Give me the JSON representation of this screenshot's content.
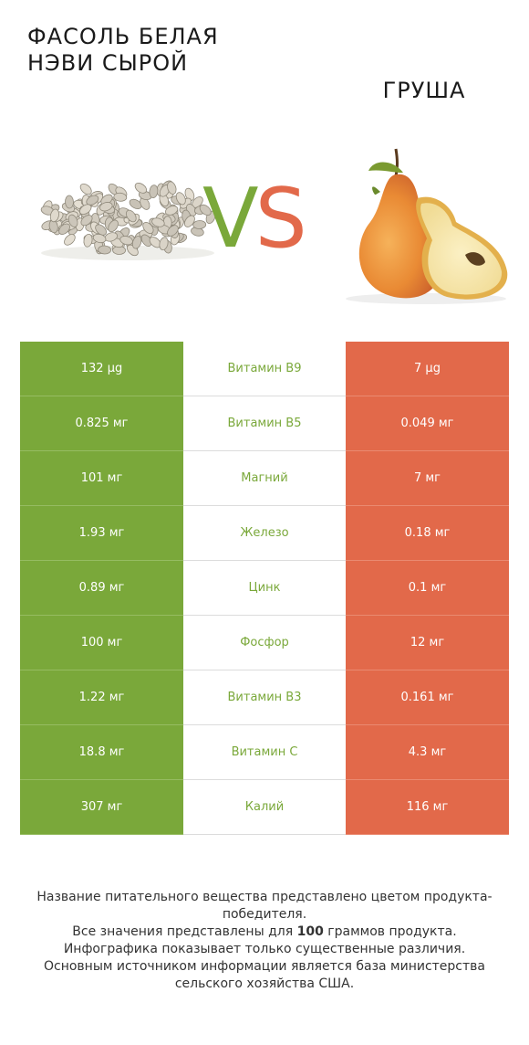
{
  "header": {
    "left_title": "ФАСОЛЬ БЕЛАЯ НЭВИ СЫРОЙ",
    "right_title": "ГРУША",
    "vs_v": "V",
    "vs_s": "S"
  },
  "colors": {
    "left_winner": "#7aa83a",
    "right_winner": "#e2694a"
  },
  "rows": [
    {
      "left": "132 µg",
      "nutrient": "Витамин B9",
      "right": "7 µg"
    },
    {
      "left": "0.825 мг",
      "nutrient": "Витамин B5",
      "right": "0.049 мг"
    },
    {
      "left": "101 мг",
      "nutrient": "Магний",
      "right": "7 мг"
    },
    {
      "left": "1.93 мг",
      "nutrient": "Железо",
      "right": "0.18 мг"
    },
    {
      "left": "0.89 мг",
      "nutrient": "Цинк",
      "right": "0.1 мг"
    },
    {
      "left": "100 мг",
      "nutrient": "Фосфор",
      "right": "12 мг"
    },
    {
      "left": "1.22 мг",
      "nutrient": "Витамин B3",
      "right": "0.161 мг"
    },
    {
      "left": "18.8 мг",
      "nutrient": "Витамин C",
      "right": "4.3 мг"
    },
    {
      "left": "307 мг",
      "nutrient": "Калий",
      "right": "116 мг"
    }
  ],
  "footer": {
    "line1": "Название питательного вещества представлено цветом продукта-победителя.",
    "line2a": "Все значения представлены для ",
    "line2b": "100",
    "line2c": " граммов продукта.",
    "line3": "Инфографика показывает только существенные различия.",
    "line4": "Основным источником информации является база министерства сельского хозяйства США."
  }
}
